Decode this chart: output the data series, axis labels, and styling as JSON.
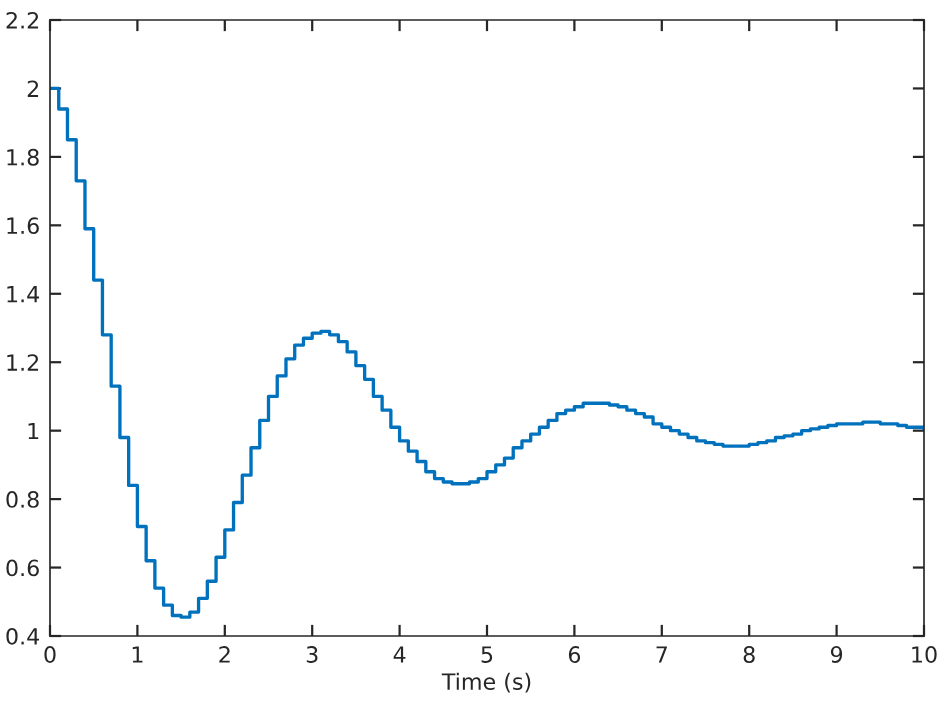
{
  "chart_data": {
    "type": "step",
    "xlabel": "Time (s)",
    "x": [
      0,
      0.1,
      0.2,
      0.3,
      0.4,
      0.5,
      0.6,
      0.7,
      0.8,
      0.9,
      1,
      1.1,
      1.2,
      1.3,
      1.4,
      1.5,
      1.6,
      1.7,
      1.8,
      1.9,
      2,
      2.1,
      2.2,
      2.3,
      2.4,
      2.5,
      2.6,
      2.7,
      2.8,
      2.9,
      3,
      3.1,
      3.2,
      3.3,
      3.4,
      3.5,
      3.6,
      3.7,
      3.8,
      3.9,
      4,
      4.1,
      4.2,
      4.3,
      4.4,
      4.5,
      4.6,
      4.7,
      4.8,
      4.9,
      5,
      5.1,
      5.2,
      5.3,
      5.4,
      5.5,
      5.6,
      5.7,
      5.8,
      5.9,
      6,
      6.1,
      6.2,
      6.3,
      6.4,
      6.5,
      6.6,
      6.7,
      6.8,
      6.9,
      7,
      7.1,
      7.2,
      7.3,
      7.4,
      7.5,
      7.6,
      7.7,
      7.8,
      7.9,
      8,
      8.1,
      8.2,
      8.3,
      8.4,
      8.5,
      8.6,
      8.7,
      8.8,
      8.9,
      9,
      9.1,
      9.2,
      9.3,
      9.4,
      9.5,
      9.6,
      9.7,
      9.8,
      9.9,
      10
    ],
    "series": [
      {
        "color": "#0072bd",
        "values": [
          2.0,
          1.94,
          1.85,
          1.73,
          1.59,
          1.44,
          1.28,
          1.13,
          0.98,
          0.84,
          0.72,
          0.62,
          0.54,
          0.49,
          0.46,
          0.455,
          0.47,
          0.51,
          0.56,
          0.63,
          0.71,
          0.79,
          0.87,
          0.95,
          1.03,
          1.1,
          1.16,
          1.21,
          1.25,
          1.27,
          1.285,
          1.29,
          1.28,
          1.26,
          1.23,
          1.19,
          1.15,
          1.1,
          1.06,
          1.01,
          0.97,
          0.94,
          0.91,
          0.88,
          0.86,
          0.85,
          0.845,
          0.845,
          0.85,
          0.86,
          0.88,
          0.9,
          0.92,
          0.95,
          0.97,
          0.99,
          1.01,
          1.03,
          1.05,
          1.06,
          1.07,
          1.08,
          1.08,
          1.08,
          1.075,
          1.07,
          1.06,
          1.05,
          1.04,
          1.02,
          1.01,
          1.0,
          0.99,
          0.98,
          0.97,
          0.965,
          0.96,
          0.955,
          0.955,
          0.955,
          0.96,
          0.965,
          0.97,
          0.98,
          0.985,
          0.99,
          1.0,
          1.005,
          1.01,
          1.015,
          1.02,
          1.02,
          1.02,
          1.025,
          1.025,
          1.02,
          1.02,
          1.015,
          1.01,
          1.01,
          1.005
        ]
      }
    ],
    "xlim": [
      0,
      10
    ],
    "ylim": [
      0.4,
      2.2
    ],
    "xticks": [
      0,
      1,
      2,
      3,
      4,
      5,
      6,
      7,
      8,
      9,
      10
    ],
    "yticks": [
      0.4,
      0.6,
      0.8,
      1,
      1.2,
      1.4,
      1.6,
      1.8,
      2,
      2.2
    ],
    "grid": false
  }
}
